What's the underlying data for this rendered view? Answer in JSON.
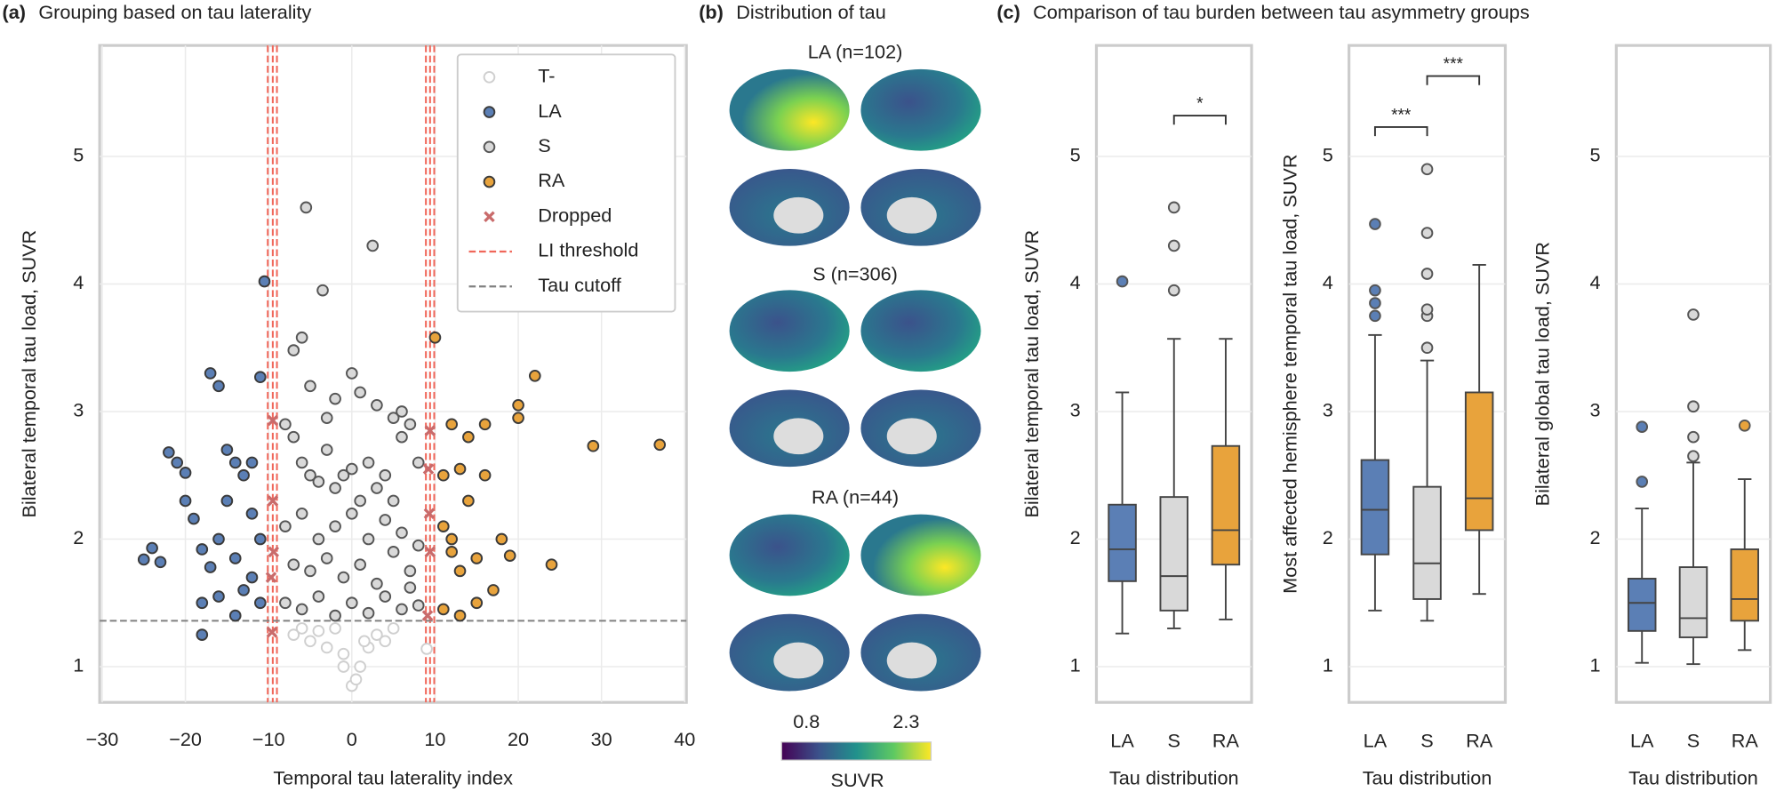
{
  "chart_data": [
    {
      "type": "scatter",
      "label": "(a)",
      "title": "Grouping based on tau laterality",
      "xlabel": "Temporal tau laterality index",
      "ylabel": "Bilateral temporal tau load, SUVR",
      "xlim": [
        -30.3,
        40.2
      ],
      "ylim": [
        0.72,
        5.87
      ],
      "xticks": [
        {
          "value": -30,
          "label": "−30"
        },
        {
          "value": -20,
          "label": "−20"
        },
        {
          "value": -10,
          "label": "−10"
        },
        0,
        10,
        20,
        30,
        40
      ],
      "yticks": [
        1,
        2,
        3,
        4,
        5
      ],
      "grid": true,
      "legend": "upper right",
      "series": [
        {
          "name": "T-",
          "marker": "circle",
          "color": "#ffffff",
          "edge": "#cfcfcf",
          "x": [
            -5,
            -3,
            -1,
            0,
            0.5,
            1,
            2,
            3,
            -2,
            -4,
            4,
            -6,
            5,
            -1,
            1.5,
            9,
            -7
          ],
          "y": [
            1.2,
            1.15,
            1.1,
            0.85,
            0.9,
            1.0,
            1.15,
            1.25,
            1.3,
            1.28,
            1.2,
            1.3,
            1.3,
            1.0,
            1.2,
            1.14,
            1.25
          ]
        },
        {
          "name": "LA",
          "marker": "circle",
          "color": "#5b7fb5",
          "edge": "#3a3a3a",
          "x": [
            -25,
            -24,
            -23,
            -22,
            -21,
            -20,
            -19,
            -18,
            -18,
            -17,
            -17,
            -16,
            -16,
            -16,
            -15,
            -15,
            -14,
            -14,
            -13,
            -13,
            -12,
            -12,
            -11,
            -11,
            -11,
            -10.5,
            -18,
            -20,
            -14,
            -12
          ],
          "y": [
            1.84,
            1.93,
            1.82,
            2.68,
            2.6,
            2.52,
            2.16,
            1.92,
            1.5,
            3.3,
            1.78,
            3.2,
            2.0,
            1.55,
            2.7,
            2.3,
            2.6,
            1.85,
            2.5,
            1.6,
            2.2,
            1.7,
            3.27,
            2.0,
            1.5,
            4.02,
            1.25,
            2.3,
            1.4,
            2.6
          ]
        },
        {
          "name": "S",
          "marker": "circle",
          "color": "#d9d9d9",
          "edge": "#555555",
          "x": [
            -5.5,
            2.5,
            -3.5,
            -7,
            -6,
            -5,
            0,
            1,
            -2,
            -8,
            -7,
            -6,
            -5,
            -4,
            -3,
            -2,
            -1,
            0,
            1,
            2,
            3,
            4,
            5,
            6,
            7,
            8,
            -8,
            -6,
            -4,
            -2,
            0,
            2,
            4,
            6,
            8,
            -7,
            -5,
            -3,
            -1,
            1,
            3,
            5,
            7,
            -8,
            -6,
            -4,
            -2,
            0,
            2,
            4,
            6,
            8,
            -3,
            3,
            5,
            6,
            7
          ],
          "y": [
            4.6,
            4.3,
            3.95,
            3.48,
            3.58,
            3.2,
            3.3,
            3.15,
            3.1,
            2.9,
            2.8,
            2.6,
            2.5,
            2.45,
            2.7,
            2.4,
            2.5,
            2.55,
            2.3,
            2.6,
            2.4,
            2.5,
            2.3,
            2.8,
            2.9,
            2.6,
            2.1,
            2.2,
            2.0,
            2.1,
            2.2,
            2.0,
            2.15,
            2.05,
            1.95,
            1.8,
            1.75,
            1.85,
            1.7,
            1.8,
            1.65,
            1.9,
            1.75,
            1.5,
            1.45,
            1.55,
            1.4,
            1.5,
            1.42,
            1.55,
            1.45,
            1.48,
            2.95,
            3.05,
            2.95,
            3.0,
            1.62
          ]
        },
        {
          "name": "RA",
          "marker": "circle",
          "color": "#e8a33c",
          "edge": "#3a3a3a",
          "x": [
            10,
            11,
            12,
            13,
            14,
            16,
            20,
            20,
            22,
            29,
            37,
            11,
            12,
            13,
            14,
            15,
            16,
            17,
            18,
            19,
            24,
            13,
            11,
            12,
            15
          ],
          "y": [
            3.58,
            2.5,
            2.9,
            2.55,
            2.8,
            2.9,
            3.05,
            2.95,
            3.28,
            2.73,
            2.74,
            2.1,
            1.9,
            1.75,
            2.3,
            1.85,
            2.5,
            1.6,
            2.0,
            1.87,
            1.8,
            1.4,
            1.45,
            2.0,
            1.5
          ]
        },
        {
          "name": "Dropped",
          "marker": "x",
          "color": "#c96b6b",
          "edge": "#555555",
          "x": [
            -9.5,
            -9.5,
            -9.4,
            -9.6,
            -9.7,
            9.4,
            9.2,
            9.3,
            9.4,
            9.1
          ],
          "y": [
            2.93,
            2.3,
            1.9,
            1.27,
            1.7,
            2.85,
            2.55,
            2.2,
            1.9,
            1.4
          ]
        }
      ],
      "lines": [
        {
          "name": "LI threshold",
          "orientation": "vertical",
          "color": "#f0675a",
          "values": [
            -10.1,
            -9.5,
            -9.0,
            8.9,
            9.4,
            9.9
          ]
        },
        {
          "name": "Tau cutoff",
          "orientation": "horizontal",
          "color": "#808080",
          "values": [
            1.36
          ]
        }
      ]
    },
    {
      "type": "box",
      "label": "(c)",
      "title": "Comparison of tau burden between tau asymmetry groups",
      "ylabel": "Bilateral temporal tau load, SUVR",
      "xlabel": "Tau distribution",
      "ylim": [
        0.72,
        5.87
      ],
      "yticks": [
        1,
        2,
        3,
        4,
        5
      ],
      "grid": true,
      "categories": [
        "LA",
        "S",
        "RA"
      ],
      "colors": [
        "#5b7fb5",
        "#d9d9d9",
        "#e8a33c"
      ],
      "boxes": [
        {
          "whislo": 1.26,
          "q1": 1.67,
          "med": 1.92,
          "q3": 2.27,
          "whishi": 3.15,
          "fliers": [
            4.02
          ]
        },
        {
          "whislo": 1.3,
          "q1": 1.44,
          "med": 1.71,
          "q3": 2.33,
          "whishi": 3.57,
          "fliers": [
            3.95,
            4.3,
            4.6
          ]
        },
        {
          "whislo": 1.37,
          "q1": 1.8,
          "med": 2.07,
          "q3": 2.73,
          "whishi": 3.57,
          "fliers": []
        }
      ],
      "annotations": [
        {
          "text": "*",
          "from": 1,
          "to": 2,
          "y": 5.32
        }
      ]
    },
    {
      "type": "box",
      "ylabel": "Most affected hemisphere temporal tau load, SUVR",
      "xlabel": "Tau distribution",
      "ylim": [
        0.72,
        5.87
      ],
      "yticks": [
        1,
        2,
        3,
        4,
        5
      ],
      "grid": true,
      "categories": [
        "LA",
        "S",
        "RA"
      ],
      "colors": [
        "#5b7fb5",
        "#d9d9d9",
        "#e8a33c"
      ],
      "boxes": [
        {
          "whislo": 1.44,
          "q1": 1.88,
          "med": 2.23,
          "q3": 2.62,
          "whishi": 3.6,
          "fliers": [
            3.75,
            3.85,
            3.95,
            4.47
          ]
        },
        {
          "whislo": 1.36,
          "q1": 1.53,
          "med": 1.81,
          "q3": 2.41,
          "whishi": 3.4,
          "fliers": [
            3.5,
            3.75,
            3.8,
            4.08,
            4.4,
            4.9
          ]
        },
        {
          "whislo": 1.57,
          "q1": 2.07,
          "med": 2.32,
          "q3": 3.15,
          "whishi": 4.15,
          "fliers": []
        }
      ],
      "annotations": [
        {
          "text": "***",
          "from": 0,
          "to": 1,
          "y": 5.23
        },
        {
          "text": "***",
          "from": 1,
          "to": 2,
          "y": 5.63
        }
      ]
    },
    {
      "type": "box",
      "ylabel": "Bilateral global tau load, SUVR",
      "xlabel": "Tau distribution",
      "ylim": [
        0.72,
        5.87
      ],
      "yticks": [
        1,
        2,
        3,
        4,
        5
      ],
      "grid": true,
      "categories": [
        "LA",
        "S",
        "RA"
      ],
      "colors": [
        "#5b7fb5",
        "#d9d9d9",
        "#e8a33c"
      ],
      "boxes": [
        {
          "whislo": 1.03,
          "q1": 1.28,
          "med": 1.5,
          "q3": 1.69,
          "whishi": 2.24,
          "fliers": [
            2.45,
            2.88
          ]
        },
        {
          "whislo": 1.02,
          "q1": 1.23,
          "med": 1.38,
          "q3": 1.78,
          "whishi": 2.6,
          "fliers": [
            2.65,
            2.8,
            3.04,
            3.76
          ]
        },
        {
          "whislo": 1.13,
          "q1": 1.36,
          "med": 1.53,
          "q3": 1.92,
          "whishi": 2.47,
          "fliers": [
            2.89
          ]
        }
      ],
      "annotations": []
    }
  ],
  "brain_panel": {
    "label": "(b)",
    "title": "Distribution of tau",
    "groups": [
      "LA (n=102)",
      "S (n=306)",
      "RA (n=44)"
    ],
    "colorbar": {
      "min_label": "0.8",
      "max_label": "2.3",
      "label": "SUVR"
    }
  }
}
